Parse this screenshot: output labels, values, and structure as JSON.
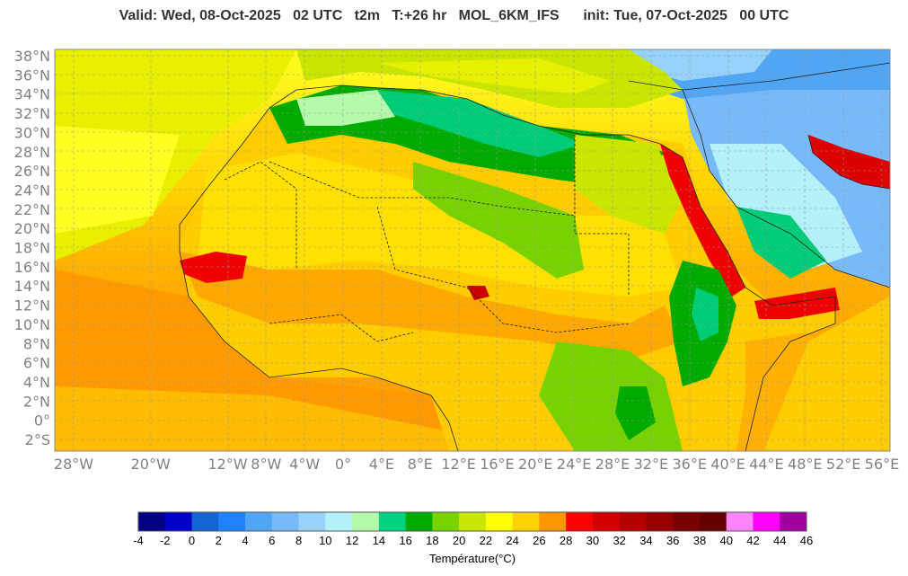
{
  "header": {
    "title": "Valid: Wed, 08-Oct-2025   02 UTC   t2m   T:+26 hr   MOL_6KM_IFS      init: Tue, 07-Oct-2025   00 UTC"
  },
  "map": {
    "lat_labels": [
      "38°N",
      "36°N",
      "34°N",
      "32°N",
      "30°N",
      "28°N",
      "26°N",
      "24°N",
      "22°N",
      "20°N",
      "18°N",
      "16°N",
      "14°N",
      "12°N",
      "10°N",
      "8°N",
      "6°N",
      "4°N",
      "2°N",
      "0°",
      "2°S"
    ],
    "lon_labels": [
      "28°W",
      "20°W",
      "12°W",
      "8°W",
      "4°W",
      "0°",
      "4°E",
      "8°E",
      "12°E",
      "16°E",
      "20°E",
      "24°E",
      "28°E",
      "32°E",
      "36°E",
      "40°E",
      "44°E",
      "48°E",
      "52°E",
      "56°E"
    ],
    "land_colors": {
      "ocean_warm": "#ff9900",
      "ocean_mid": "#ffcc00",
      "ocean_cool": "#ffff22",
      "land_green": "#00aa00",
      "land_teal": "#00cc77",
      "red_sea": "#ee0000"
    }
  },
  "colorbar": {
    "labels": [
      "-4",
      "-2",
      "0",
      "2",
      "4",
      "6",
      "8",
      "10",
      "12",
      "14",
      "16",
      "18",
      "20",
      "22",
      "24",
      "26",
      "28",
      "30",
      "32",
      "34",
      "36",
      "38",
      "40",
      "42",
      "44",
      "46"
    ],
    "colors": [
      "#000080",
      "#0000c8",
      "#1464d2",
      "#1e82ff",
      "#50a5f5",
      "#78b9fa",
      "#96d2fa",
      "#b4f0fa",
      "#b4faaa",
      "#00d282",
      "#00aa00",
      "#78d200",
      "#c8e600",
      "#ffff00",
      "#ffd200",
      "#ff9600",
      "#ff0000",
      "#d20000",
      "#b40000",
      "#960000",
      "#780000",
      "#640000",
      "#ff82ff",
      "#ff00ff",
      "#a000a0",
      "#8c64ff"
    ],
    "title": "Température(°C)"
  }
}
